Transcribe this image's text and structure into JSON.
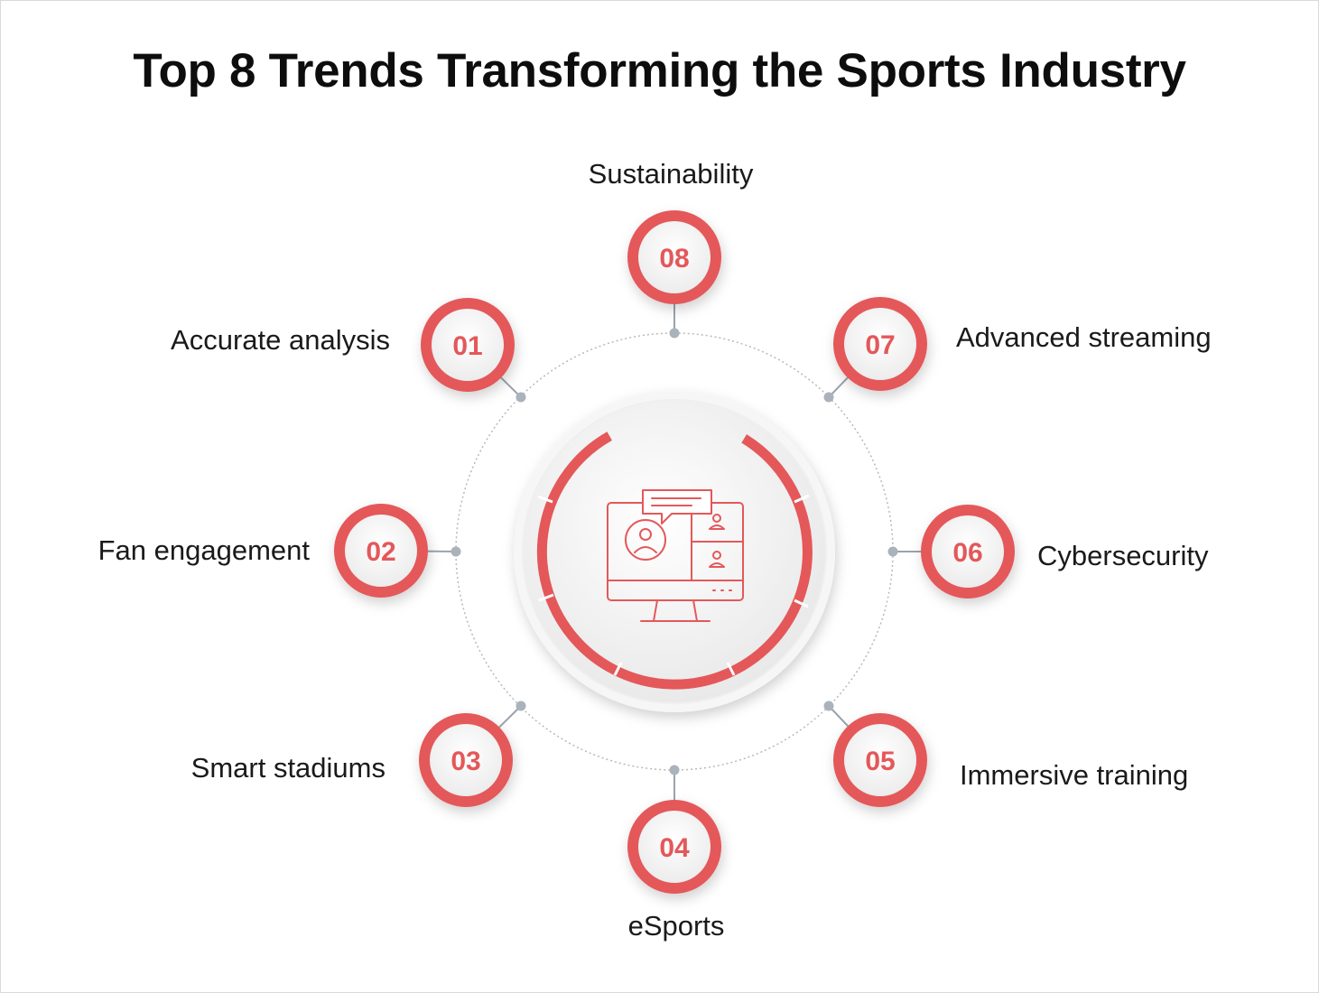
{
  "title": "Top 8 Trends Transforming the Sports Industry",
  "center_icon": "monitor-video-chat-icon",
  "accent_color": "#e4585a",
  "trends": [
    {
      "number": "01",
      "label": "Accurate analysis"
    },
    {
      "number": "02",
      "label": "Fan engagement"
    },
    {
      "number": "03",
      "label": "Smart stadiums"
    },
    {
      "number": "04",
      "label": "eSports"
    },
    {
      "number": "05",
      "label": "Immersive training"
    },
    {
      "number": "06",
      "label": "Cybersecurity"
    },
    {
      "number": "07",
      "label": "Advanced streaming"
    },
    {
      "number": "08",
      "label": "Sustainability"
    }
  ]
}
